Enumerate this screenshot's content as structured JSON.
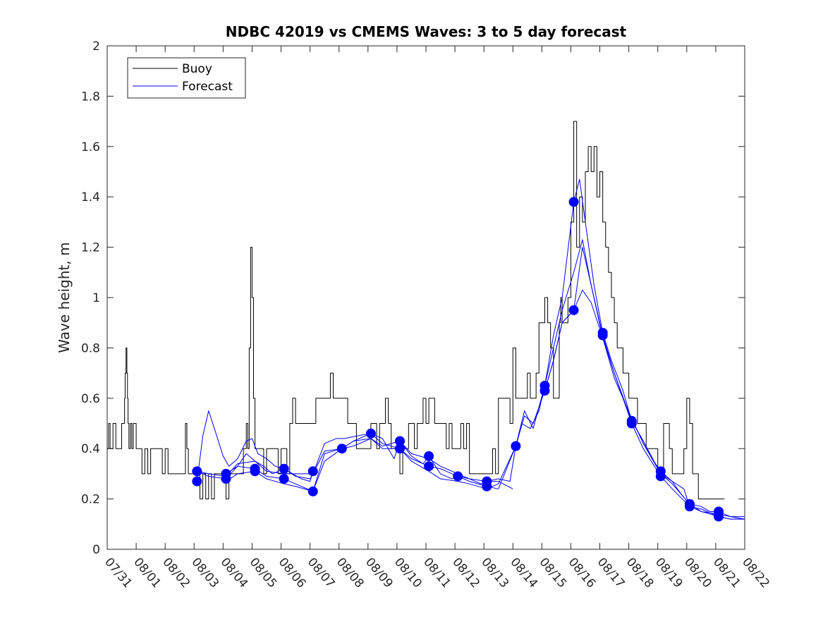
{
  "chart_data": {
    "type": "line",
    "title": "NDBC 42019 vs CMEMS Waves: 3 to 5 day forecast",
    "xlabel": "",
    "ylabel": "Wave height, m",
    "xlim": [
      0,
      22
    ],
    "ylim": [
      0,
      2
    ],
    "yticks": [
      0,
      0.2,
      0.4,
      0.6,
      0.8,
      1,
      1.2,
      1.4,
      1.6,
      1.8,
      2
    ],
    "ytick_labels": [
      "0",
      "0.2",
      "0.4",
      "0.6",
      "0.8",
      "1",
      "1.2",
      "1.4",
      "1.6",
      "1.8",
      "2"
    ],
    "xtick_labels": [
      "07/31",
      "08/01",
      "08/02",
      "08/03",
      "08/04",
      "08/05",
      "08/06",
      "08/07",
      "08/08",
      "08/09",
      "08/10",
      "08/11",
      "08/12",
      "08/13",
      "08/14",
      "08/15",
      "08/16",
      "08/17",
      "08/18",
      "08/19",
      "08/20",
      "08/21",
      "08/22"
    ],
    "legend": {
      "position": "top-left",
      "entries": [
        "Buoy",
        "Forecast"
      ]
    },
    "colors": {
      "buoy": "#000000",
      "forecast": "#0000ff"
    },
    "series": [
      {
        "name": "Buoy",
        "style": "step",
        "color": "#000000",
        "x": [
          0,
          0.05,
          0.1,
          0.2,
          0.3,
          0.4,
          0.5,
          0.6,
          0.62,
          0.65,
          0.68,
          0.7,
          0.72,
          0.75,
          0.8,
          0.85,
          0.9,
          1.0,
          1.05,
          1.1,
          1.2,
          1.25,
          1.3,
          1.4,
          1.5,
          1.6,
          1.7,
          1.8,
          1.9,
          2.0,
          2.1,
          2.2,
          2.3,
          2.4,
          2.5,
          2.6,
          2.7,
          2.75,
          2.8,
          2.9,
          3.0,
          3.1,
          3.2,
          3.3,
          3.4,
          3.5,
          3.6,
          3.7,
          3.8,
          3.9,
          4.0,
          4.1,
          4.2,
          4.3,
          4.4,
          4.5,
          4.6,
          4.7,
          4.8,
          4.85,
          4.9,
          4.95,
          5.0,
          5.05,
          5.1,
          5.2,
          5.3,
          5.4,
          5.5,
          5.6,
          5.7,
          5.8,
          5.9,
          6.0,
          6.1,
          6.2,
          6.3,
          6.4,
          6.5,
          6.6,
          6.7,
          6.8,
          6.9,
          7.0,
          7.1,
          7.2,
          7.3,
          7.4,
          7.5,
          7.6,
          7.7,
          7.8,
          7.9,
          8.0,
          8.1,
          8.2,
          8.3,
          8.4,
          8.5,
          8.6,
          8.7,
          8.8,
          8.9,
          9.0,
          9.1,
          9.2,
          9.3,
          9.4,
          9.5,
          9.6,
          9.7,
          9.8,
          9.9,
          10.0,
          10.1,
          10.2,
          10.3,
          10.4,
          10.5,
          10.6,
          10.7,
          10.8,
          10.9,
          11.0,
          11.1,
          11.2,
          11.3,
          11.4,
          11.5,
          11.6,
          11.7,
          11.8,
          11.9,
          12.0,
          12.1,
          12.2,
          12.3,
          12.4,
          12.5,
          12.6,
          12.7,
          12.8,
          12.9,
          13.0,
          13.1,
          13.2,
          13.3,
          13.4,
          13.5,
          13.6,
          13.7,
          13.8,
          13.9,
          14.0,
          14.1,
          14.2,
          14.3,
          14.4,
          14.5,
          14.6,
          14.7,
          14.8,
          14.9,
          15.0,
          15.1,
          15.2,
          15.3,
          15.4,
          15.5,
          15.6,
          15.65,
          15.7,
          15.8,
          15.9,
          16.0,
          16.1,
          16.2,
          16.3,
          16.4,
          16.5,
          16.6,
          16.7,
          16.8,
          16.9,
          17.0,
          17.1,
          17.2,
          17.3,
          17.4,
          17.5,
          17.6,
          17.7,
          17.8,
          17.9,
          18.0,
          18.1,
          18.2,
          18.3,
          18.4,
          18.5,
          18.6,
          18.7,
          18.8,
          18.9,
          19.0,
          19.1,
          19.2,
          19.3,
          19.4,
          19.5,
          19.6,
          19.7,
          19.8,
          19.9,
          20.0,
          20.1,
          20.2,
          20.3,
          20.4,
          20.5,
          20.6,
          20.7,
          20.8,
          20.9,
          21.0,
          21.1,
          21.2,
          21.3
        ],
        "values": [
          0.4,
          0.5,
          0.4,
          0.5,
          0.4,
          0.4,
          0.5,
          0.6,
          0.7,
          0.8,
          0.7,
          0.6,
          0.5,
          0.4,
          0.5,
          0.4,
          0.5,
          0.4,
          0.4,
          0.4,
          0.3,
          0.3,
          0.4,
          0.3,
          0.4,
          0.4,
          0.4,
          0.4,
          0.3,
          0.4,
          0.3,
          0.3,
          0.3,
          0.3,
          0.3,
          0.3,
          0.5,
          0.4,
          0.3,
          0.3,
          0.3,
          0.3,
          0.2,
          0.3,
          0.2,
          0.3,
          0.2,
          0.3,
          0.3,
          0.3,
          0.3,
          0.2,
          0.3,
          0.3,
          0.3,
          0.3,
          0.3,
          0.4,
          0.5,
          0.4,
          0.8,
          1.2,
          1.0,
          0.6,
          0.4,
          0.4,
          0.4,
          0.3,
          0.4,
          0.4,
          0.4,
          0.4,
          0.3,
          0.4,
          0.4,
          0.3,
          0.5,
          0.6,
          0.5,
          0.5,
          0.5,
          0.5,
          0.5,
          0.5,
          0.5,
          0.6,
          0.6,
          0.6,
          0.6,
          0.6,
          0.7,
          0.6,
          0.6,
          0.6,
          0.6,
          0.6,
          0.5,
          0.5,
          0.5,
          0.4,
          0.4,
          0.4,
          0.4,
          0.4,
          0.5,
          0.5,
          0.4,
          0.5,
          0.5,
          0.6,
          0.5,
          0.4,
          0.4,
          0.4,
          0.3,
          0.4,
          0.4,
          0.5,
          0.5,
          0.4,
          0.5,
          0.5,
          0.6,
          0.5,
          0.6,
          0.6,
          0.5,
          0.5,
          0.5,
          0.5,
          0.4,
          0.5,
          0.4,
          0.4,
          0.4,
          0.5,
          0.4,
          0.5,
          0.3,
          0.3,
          0.3,
          0.3,
          0.3,
          0.3,
          0.3,
          0.3,
          0.4,
          0.3,
          0.6,
          0.6,
          0.6,
          0.6,
          0.5,
          0.8,
          0.6,
          0.6,
          0.6,
          0.6,
          0.7,
          0.6,
          0.6,
          0.7,
          0.9,
          0.9,
          1.0,
          0.9,
          0.8,
          0.6,
          0.6,
          0.9,
          1.0,
          0.9,
          0.9,
          1.0,
          1.3,
          1.7,
          1.2,
          1.4,
          1.3,
          1.5,
          1.6,
          1.5,
          1.6,
          1.4,
          1.5,
          1.3,
          1.2,
          1.1,
          1.0,
          0.9,
          0.8,
          0.8,
          0.7,
          0.7,
          0.6,
          0.6,
          0.6,
          0.5,
          0.5,
          0.5,
          0.4,
          0.4,
          0.4,
          0.4,
          0.3,
          0.3,
          0.5,
          0.5,
          0.4,
          0.3,
          0.3,
          0.3,
          0.3,
          0.4,
          0.6,
          0.5,
          0.3,
          0.3,
          0.2,
          0.2,
          0.2,
          0.2,
          0.2,
          0.2,
          0.2,
          0.2,
          0.2,
          0.2
        ]
      },
      {
        "name": "Forecast run 1",
        "color": "#0000ff",
        "x": [
          3.1,
          3.3,
          3.5,
          3.7,
          4.0,
          4.2,
          4.5,
          4.8,
          5.0,
          5.2,
          5.5,
          5.8,
          6.1,
          6.4,
          6.7,
          7.0,
          7.1
        ],
        "values": [
          0.27,
          0.45,
          0.55,
          0.48,
          0.37,
          0.33,
          0.36,
          0.43,
          0.44,
          0.38,
          0.36,
          0.33,
          0.32,
          0.3,
          0.28,
          0.27,
          0.31
        ]
      },
      {
        "name": "Forecast run 2",
        "color": "#0000ff",
        "x": [
          4.1,
          4.5,
          4.8,
          5.1,
          5.4,
          5.7,
          6.1,
          6.5,
          7.0,
          7.1,
          7.5,
          7.9,
          8.2,
          8.6,
          9.1,
          9.5,
          9.9,
          10.1,
          10.5,
          10.9,
          11.1,
          11.5,
          11.9,
          12.1,
          12.5,
          12.9,
          13.1,
          13.5,
          13.9,
          14.1,
          14.3,
          14.6,
          14.9,
          15.1,
          15.4,
          15.7,
          16.1,
          16.3,
          16.5,
          16.8,
          17.1,
          17.4,
          17.8,
          18.1,
          18.5,
          18.8,
          19.1,
          19.5,
          19.8,
          20.1,
          20.5,
          20.8,
          21.1,
          21.5,
          22
        ],
        "values": [
          0.3,
          0.33,
          0.38,
          0.35,
          0.33,
          0.3,
          0.32,
          0.29,
          0.28,
          0.3,
          0.42,
          0.44,
          0.44,
          0.45,
          0.46,
          0.44,
          0.36,
          0.43,
          0.37,
          0.34,
          0.37,
          0.3,
          0.28,
          0.29,
          0.28,
          0.26,
          0.27,
          0.28,
          0.27,
          0.41,
          0.5,
          0.48,
          0.55,
          0.65,
          0.85,
          1.0,
          1.38,
          1.47,
          1.3,
          1.05,
          0.86,
          0.75,
          0.63,
          0.51,
          0.43,
          0.36,
          0.31,
          0.27,
          0.22,
          0.18,
          0.17,
          0.15,
          0.15,
          0.13,
          0.12
        ]
      },
      {
        "name": "Forecast run 3",
        "color": "#0000ff",
        "x": [
          3.1,
          3.5,
          4.1,
          4.5,
          5.1,
          5.5,
          6.1,
          6.5,
          7.1,
          7.5,
          8.1,
          8.5,
          9.1,
          9.5,
          10.1,
          10.5,
          11.1,
          11.5,
          12.1,
          12.5,
          13.1,
          13.5,
          14.1,
          14.4,
          14.7,
          15.1,
          15.4,
          15.7,
          16.1,
          16.4,
          16.7,
          17.1,
          17.5,
          18.1,
          18.5,
          19.1,
          19.5,
          20.1,
          20.5,
          21.1,
          21.5,
          22
        ],
        "values": [
          0.31,
          0.29,
          0.28,
          0.33,
          0.32,
          0.29,
          0.28,
          0.26,
          0.23,
          0.38,
          0.4,
          0.43,
          0.46,
          0.42,
          0.4,
          0.36,
          0.33,
          0.32,
          0.29,
          0.27,
          0.25,
          0.24,
          0.41,
          0.53,
          0.5,
          0.63,
          0.75,
          0.9,
          0.95,
          1.2,
          1.05,
          0.85,
          0.7,
          0.5,
          0.4,
          0.29,
          0.24,
          0.17,
          0.15,
          0.13,
          0.12,
          0.12
        ]
      },
      {
        "name": "Forecast run 4",
        "color": "#0000ff",
        "x": [
          4.1,
          4.5,
          5.1,
          5.5,
          6.1,
          6.5,
          7.1,
          7.5,
          8.1,
          8.5,
          9.1,
          9.5,
          10.1,
          10.5,
          11.1,
          11.5,
          12.1,
          12.5,
          13.1,
          13.5,
          14.1,
          14.4,
          14.7,
          15.1,
          15.4,
          15.7,
          16.1,
          16.4,
          16.7,
          17.1,
          17.5,
          18.1,
          18.5,
          19.1,
          19.5,
          20.1,
          20.5,
          21.1,
          21.5,
          22
        ],
        "values": [
          0.27,
          0.3,
          0.31,
          0.28,
          0.26,
          0.25,
          0.23,
          0.35,
          0.4,
          0.41,
          0.44,
          0.4,
          0.4,
          0.35,
          0.31,
          0.28,
          0.27,
          0.26,
          0.24,
          0.26,
          0.41,
          0.55,
          0.48,
          0.65,
          0.8,
          0.95,
          1.1,
          1.23,
          1.05,
          0.84,
          0.68,
          0.52,
          0.42,
          0.3,
          0.26,
          0.18,
          0.15,
          0.14,
          0.13,
          0.13
        ]
      },
      {
        "name": "Forecast run 5",
        "color": "#0000ff",
        "x": [
          3.1,
          3.5,
          4.1,
          4.5,
          5.1,
          5.5,
          6.1,
          6.5,
          7.1,
          7.5,
          8.1,
          8.5,
          9.1,
          9.5,
          10.1,
          10.5,
          11.1,
          11.5,
          12.1,
          12.5,
          13.1,
          13.5,
          14.0
        ],
        "values": [
          0.31,
          0.3,
          0.29,
          0.34,
          0.35,
          0.31,
          0.3,
          0.3,
          0.3,
          0.39,
          0.4,
          0.43,
          0.44,
          0.41,
          0.43,
          0.38,
          0.36,
          0.33,
          0.3,
          0.28,
          0.27,
          0.27,
          0.24
        ]
      },
      {
        "name": "Forecast run 6",
        "color": "#0000ff",
        "x": [
          15.1,
          15.4,
          15.7,
          16.1,
          16.4,
          16.7,
          17.1,
          17.5,
          18.1,
          18.5,
          19.1,
          19.5,
          19.9,
          20.1,
          20.5,
          21.1,
          21.5,
          22
        ],
        "values": [
          0.63,
          0.75,
          0.9,
          0.95,
          1.03,
          0.98,
          0.84,
          0.7,
          0.51,
          0.43,
          0.3,
          0.27,
          0.24,
          0.17,
          0.16,
          0.13,
          0.12,
          0.12
        ]
      }
    ],
    "markers": {
      "name": "Forecast points",
      "color": "#0000ff",
      "x": [
        3.1,
        3.1,
        4.1,
        4.1,
        5.1,
        5.1,
        6.1,
        6.1,
        7.1,
        7.1,
        8.1,
        9.1,
        10.1,
        10.1,
        11.1,
        11.1,
        12.1,
        13.1,
        13.1,
        14.1,
        15.1,
        15.1,
        16.1,
        16.1,
        17.1,
        17.1,
        18.1,
        18.1,
        19.1,
        19.1,
        20.1,
        20.1,
        21.1,
        21.1
      ],
      "values": [
        0.31,
        0.27,
        0.3,
        0.28,
        0.32,
        0.31,
        0.32,
        0.28,
        0.31,
        0.23,
        0.4,
        0.46,
        0.43,
        0.4,
        0.37,
        0.33,
        0.29,
        0.27,
        0.25,
        0.41,
        0.65,
        0.63,
        1.38,
        0.95,
        0.86,
        0.85,
        0.51,
        0.5,
        0.31,
        0.29,
        0.18,
        0.17,
        0.15,
        0.13
      ]
    }
  }
}
